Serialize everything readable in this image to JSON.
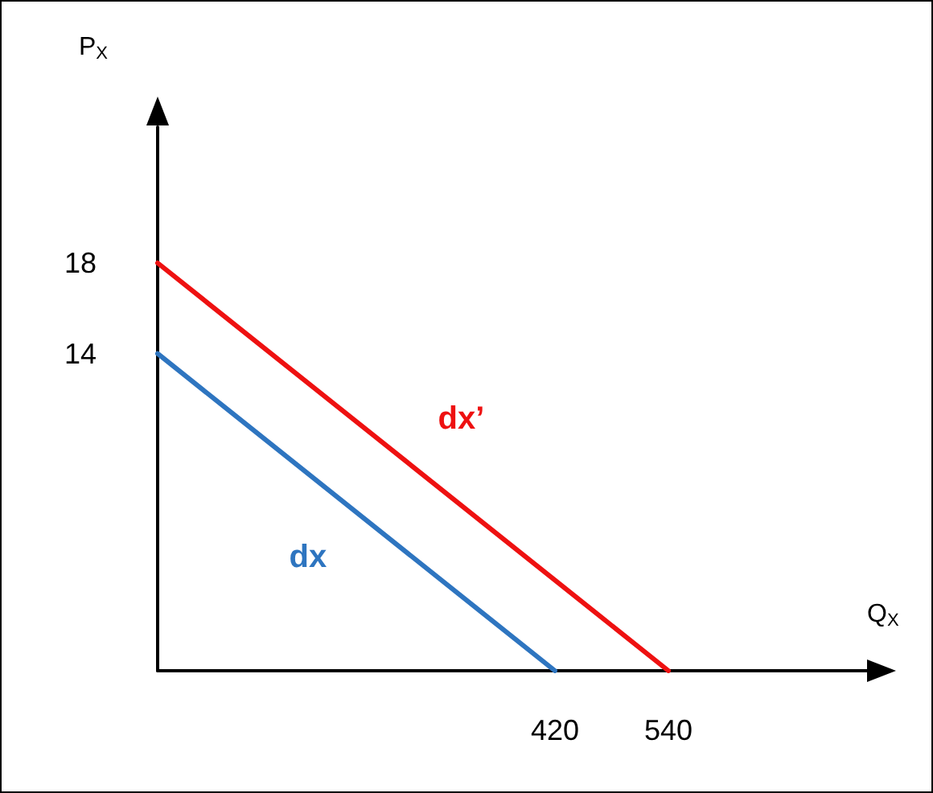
{
  "chart_data": {
    "type": "line",
    "xlabel": "Q$_{X}$",
    "ylabel": "P$_{X}$",
    "xlim": [
      0,
      750
    ],
    "ylim": [
      0,
      24
    ],
    "xticks": [
      420,
      540
    ],
    "yticks": [
      14,
      18
    ],
    "grid": false,
    "legend": false,
    "marker": "none",
    "line_style": "solid",
    "series": [
      {
        "name": "dx’",
        "color": "#ee1111",
        "x": [
          0,
          540
        ],
        "values": [
          18,
          0
        ]
      },
      {
        "name": "dx",
        "color": "#2e75c0",
        "x": [
          0,
          420
        ],
        "values": [
          14,
          0
        ]
      }
    ]
  }
}
